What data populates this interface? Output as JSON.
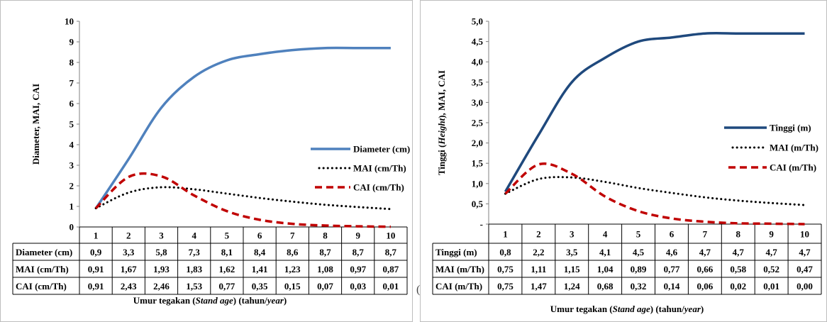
{
  "stray_glyph": "(",
  "chart_data": [
    {
      "type": "line",
      "ylabel": "Diameter, MAI, CAI",
      "xlabel": {
        "pre": "Umur tegakan (",
        "italic1": "Stand age",
        "mid": ") (tahun/",
        "italic2": "year",
        "post": ")"
      },
      "ylim": [
        0,
        10
      ],
      "y_ticks": [
        "0",
        "1",
        "2",
        "3",
        "4",
        "5",
        "6",
        "7",
        "8",
        "9",
        "10"
      ],
      "categories": [
        "1",
        "2",
        "3",
        "4",
        "5",
        "6",
        "7",
        "8",
        "9",
        "10"
      ],
      "x": [
        1,
        2,
        3,
        4,
        5,
        6,
        7,
        8,
        9,
        10
      ],
      "legend_position": "right",
      "series": [
        {
          "name": "Diameter (cm)",
          "values": [
            0.9,
            3.3,
            5.8,
            7.3,
            8.1,
            8.4,
            8.6,
            8.7,
            8.7,
            8.7
          ],
          "labels": [
            "0,9",
            "3,3",
            "5,8",
            "7,3",
            "8,1",
            "8,4",
            "8,6",
            "8,7",
            "8,7",
            "8,7"
          ],
          "color": "#4f81bd",
          "style": "solid"
        },
        {
          "name": "MAI (cm/Th)",
          "values": [
            0.91,
            1.67,
            1.93,
            1.83,
            1.62,
            1.41,
            1.23,
            1.08,
            0.97,
            0.87
          ],
          "labels": [
            "0,91",
            "1,67",
            "1,93",
            "1,83",
            "1,62",
            "1,41",
            "1,23",
            "1,08",
            "0,97",
            "0,87"
          ],
          "color": "#000000",
          "style": "dotted"
        },
        {
          "name": "CAI (cm/Th)",
          "values": [
            0.91,
            2.43,
            2.46,
            1.53,
            0.77,
            0.35,
            0.15,
            0.07,
            0.03,
            0.01
          ],
          "labels": [
            "0,91",
            "2,43",
            "2,46",
            "1,53",
            "0,77",
            "0,35",
            "0,15",
            "0,07",
            "0,03",
            "0,01"
          ],
          "color": "#c00000",
          "style": "dashed"
        }
      ]
    },
    {
      "type": "line",
      "ylabel": {
        "pre": "Tinggi (",
        "italic": "Height",
        "post": "), MAI, CAI"
      },
      "xlabel": {
        "pre": "Umur tegakan (",
        "italic1": "Stand age",
        "mid": ") (tahun/",
        "italic2": "year",
        "post": ")"
      },
      "ylim": [
        0,
        5
      ],
      "y_ticks": [
        "-",
        "0,5",
        "1,0",
        "1,5",
        "2,0",
        "2,5",
        "3,0",
        "3,5",
        "4,0",
        "4,5",
        "5,0"
      ],
      "categories": [
        "1",
        "2",
        "3",
        "4",
        "5",
        "6",
        "7",
        "8",
        "9",
        "10"
      ],
      "x": [
        1,
        2,
        3,
        4,
        5,
        6,
        7,
        8,
        9,
        10
      ],
      "legend_position": "right",
      "series": [
        {
          "name": "Tinggi (m)",
          "values": [
            0.8,
            2.2,
            3.5,
            4.1,
            4.5,
            4.6,
            4.7,
            4.7,
            4.7,
            4.7
          ],
          "labels": [
            "0,8",
            "2,2",
            "3,5",
            "4,1",
            "4,5",
            "4,6",
            "4,7",
            "4,7",
            "4,7",
            "4,7"
          ],
          "color": "#1f497d",
          "style": "solid"
        },
        {
          "name": "MAI (m/Th)",
          "values": [
            0.75,
            1.11,
            1.15,
            1.04,
            0.89,
            0.77,
            0.66,
            0.58,
            0.52,
            0.47
          ],
          "labels": [
            "0,75",
            "1,11",
            "1,15",
            "1,04",
            "0,89",
            "0,77",
            "0,66",
            "0,58",
            "0,52",
            "0,47"
          ],
          "color": "#000000",
          "style": "dotted"
        },
        {
          "name": "CAI (m/Th)",
          "values": [
            0.75,
            1.47,
            1.24,
            0.68,
            0.32,
            0.14,
            0.06,
            0.02,
            0.01,
            0.0
          ],
          "labels": [
            "0,75",
            "1,47",
            "1,24",
            "0,68",
            "0,32",
            "0,14",
            "0,06",
            "0,02",
            "0,01",
            "0,00"
          ],
          "color": "#c00000",
          "style": "dashed"
        }
      ]
    }
  ]
}
